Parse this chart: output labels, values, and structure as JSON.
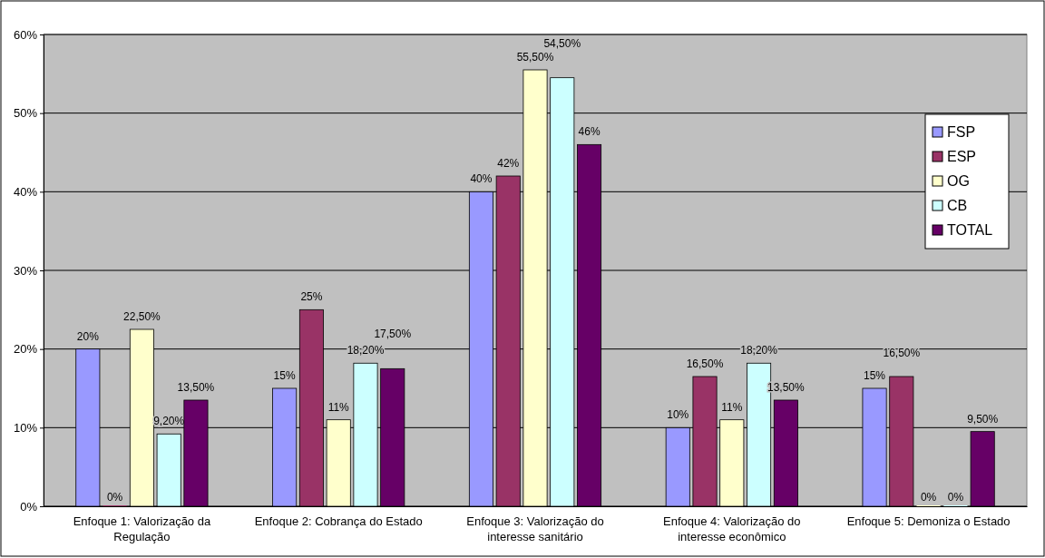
{
  "chart_data": {
    "type": "bar",
    "categories": [
      "Enfoque 1: Valorização da Regulação",
      "Enfoque 2: Cobrança do Estado",
      "Enfoque 3: Valorização do interesse sanitário",
      "Enfoque 4: Valorização do interesse econômico",
      "Enfoque 5: Demoniza o Estado"
    ],
    "series": [
      {
        "name": "FSP",
        "color": "#9999ff",
        "values": [
          20,
          15,
          40,
          10,
          15
        ],
        "value_labels": [
          "20%",
          "15%",
          "40%",
          "10%",
          "15%"
        ]
      },
      {
        "name": "ESP",
        "color": "#993366",
        "values": [
          0,
          25,
          42,
          16.5,
          16.5
        ],
        "value_labels": [
          "0%",
          "25%",
          "42%",
          "16,50%",
          "16,50%"
        ]
      },
      {
        "name": "OG",
        "color": "#ffffcc",
        "values": [
          22.5,
          11,
          55.5,
          11,
          0
        ],
        "value_labels": [
          "22,50%",
          "11%",
          "55,50%",
          "11%",
          "0%"
        ]
      },
      {
        "name": "CB",
        "color": "#ccffff",
        "values": [
          9.2,
          18.2,
          54.5,
          18.2,
          0
        ],
        "value_labels": [
          "9,20%",
          "18,20%",
          "54,50%",
          "18,20%",
          "0%"
        ]
      },
      {
        "name": "TOTAL",
        "color": "#660066",
        "values": [
          13.5,
          17.5,
          46,
          13.5,
          9.5
        ],
        "value_labels": [
          "13,50%",
          "17,50%",
          "46%",
          "13,50%",
          "9,50%"
        ]
      }
    ],
    "ylim": [
      0,
      60
    ],
    "yticks": [
      {
        "value": 0,
        "label": "0%"
      },
      {
        "value": 10,
        "label": "10%"
      },
      {
        "value": 20,
        "label": "20%"
      },
      {
        "value": 30,
        "label": "30%"
      },
      {
        "value": 40,
        "label": "40%"
      },
      {
        "value": 50,
        "label": "50%"
      },
      {
        "value": 60,
        "label": "60%"
      }
    ],
    "grid": "y",
    "legend": "top right"
  }
}
